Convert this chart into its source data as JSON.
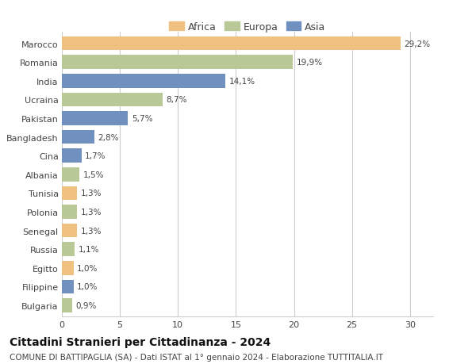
{
  "categories": [
    "Marocco",
    "Romania",
    "India",
    "Ucraina",
    "Pakistan",
    "Bangladesh",
    "Cina",
    "Albania",
    "Tunisia",
    "Polonia",
    "Senegal",
    "Russia",
    "Egitto",
    "Filippine",
    "Bulgaria"
  ],
  "values": [
    29.2,
    19.9,
    14.1,
    8.7,
    5.7,
    2.8,
    1.7,
    1.5,
    1.3,
    1.3,
    1.3,
    1.1,
    1.0,
    1.0,
    0.9
  ],
  "labels": [
    "29,2%",
    "19,9%",
    "14,1%",
    "8,7%",
    "5,7%",
    "2,8%",
    "1,7%",
    "1,5%",
    "1,3%",
    "1,3%",
    "1,3%",
    "1,1%",
    "1,0%",
    "1,0%",
    "0,9%"
  ],
  "continent": [
    "Africa",
    "Europa",
    "Asia",
    "Europa",
    "Asia",
    "Asia",
    "Asia",
    "Europa",
    "Africa",
    "Europa",
    "Africa",
    "Europa",
    "Africa",
    "Asia",
    "Europa"
  ],
  "colors": {
    "Africa": "#F0C080",
    "Europa": "#B8C896",
    "Asia": "#7090C0"
  },
  "xlim": [
    0,
    32
  ],
  "xticks": [
    0,
    5,
    10,
    15,
    20,
    25,
    30
  ],
  "title": "Cittadini Stranieri per Cittadinanza - 2024",
  "subtitle": "COMUNE DI BATTIPAGLIA (SA) - Dati ISTAT al 1° gennaio 2024 - Elaborazione TUTTITALIA.IT",
  "background_color": "#ffffff",
  "grid_color": "#cccccc",
  "bar_height": 0.75,
  "title_fontsize": 10,
  "subtitle_fontsize": 7.5,
  "label_fontsize": 7.5,
  "ytick_fontsize": 8,
  "xtick_fontsize": 8,
  "legend_fontsize": 9
}
